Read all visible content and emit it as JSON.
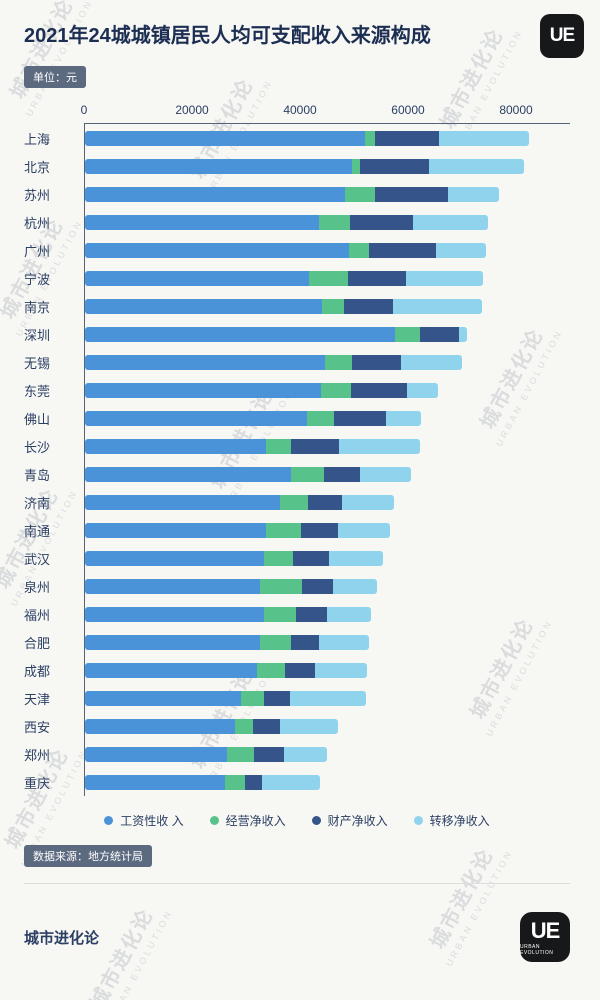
{
  "header": {
    "title": "2021年24城城镇居民人均可支配收入来源构成",
    "unit_label": "单位：元",
    "logo_text": "UE"
  },
  "chart_data": {
    "type": "bar",
    "orientation": "horizontal",
    "stacked": true,
    "title": "2021年24城城镇居民人均可支配收入来源构成",
    "unit": "元",
    "axis_max": 90000,
    "x_ticks": [
      0,
      20000,
      40000,
      60000,
      80000
    ],
    "legend_position": "bottom",
    "categories": [
      "上海",
      "北京",
      "苏州",
      "杭州",
      "广州",
      "宁波",
      "南京",
      "深圳",
      "无锡",
      "东莞",
      "佛山",
      "长沙",
      "青岛",
      "济南",
      "南通",
      "武汉",
      "泉州",
      "福州",
      "合肥",
      "成都",
      "天津",
      "西安",
      "郑州",
      "重庆"
    ],
    "series": [
      {
        "name": "工资性收 入",
        "color": "#4b93d9",
        "values": [
          52000,
          49600,
          48300,
          43400,
          48900,
          41500,
          43900,
          57500,
          44600,
          43800,
          41200,
          33500,
          38200,
          36200,
          33500,
          33200,
          32400,
          33300,
          32500,
          32000,
          28900,
          27800,
          26400,
          25900
        ]
      },
      {
        "name": "经营净收入",
        "color": "#57c28a",
        "values": [
          1900,
          1500,
          5600,
          5800,
          3800,
          7300,
          4100,
          4600,
          5000,
          5600,
          5000,
          4700,
          6200,
          5200,
          6500,
          5400,
          7900,
          5800,
          5700,
          5100,
          4300,
          3400,
          4900,
          3700
        ]
      },
      {
        "name": "财产净收入",
        "color": "#35558a",
        "values": [
          11700,
          12800,
          13500,
          11600,
          12500,
          10800,
          9100,
          7300,
          9100,
          10300,
          9700,
          8900,
          6700,
          6300,
          7000,
          6600,
          5700,
          5900,
          5300,
          5600,
          4800,
          4900,
          5600,
          3300
        ]
      },
      {
        "name": "转移净收入",
        "color": "#8fd3ec",
        "values": [
          16800,
          17600,
          9400,
          13900,
          9200,
          14300,
          16500,
          1400,
          11300,
          5800,
          6500,
          15100,
          9400,
          9700,
          9600,
          10100,
          8200,
          8100,
          9200,
          9700,
          14200,
          10900,
          8100,
          10800
        ]
      }
    ]
  },
  "footer": {
    "source_label": "数据来源：地方统计局",
    "brand": "城市进化论",
    "logo_text": "UE",
    "logo_sub": "URBAN EVOLUTION"
  },
  "watermark": {
    "line1": "城市进化论",
    "line2": "URBAN EVOLUTION"
  }
}
